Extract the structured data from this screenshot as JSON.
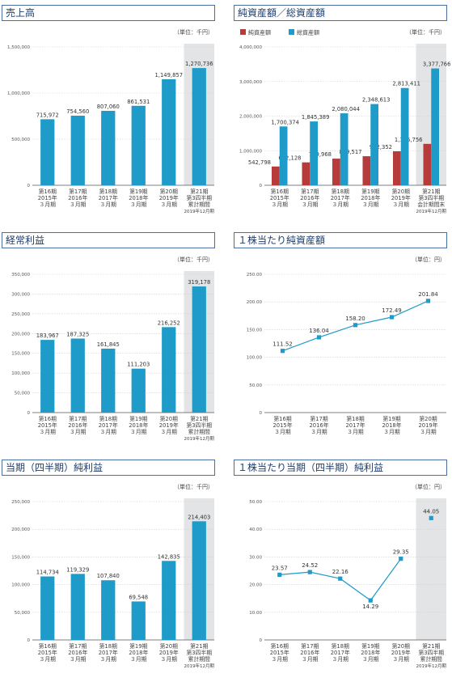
{
  "charts": [
    {
      "title": "売上高",
      "unit": "（単位：千円）",
      "chart_data": {
        "type": "bar",
        "ylim": [
          0,
          1500000
        ],
        "yticks": [
          0,
          500000,
          1000000,
          1500000
        ],
        "ytick_labels": [
          "0",
          "500,000",
          "1,000,000",
          "1,500,000"
        ],
        "grid": true,
        "categories": [
          [
            "第16期",
            "2015年",
            "３月期"
          ],
          [
            "第17期",
            "2016年",
            "３月期"
          ],
          [
            "第18期",
            "2017年",
            "３月期"
          ],
          [
            "第19期",
            "2018年",
            "３月期"
          ],
          [
            "第20期",
            "2019年",
            "３月期"
          ],
          [
            "第21期",
            "第3四半期",
            "累計期間",
            "2019年12月期"
          ]
        ],
        "series": [
          {
            "values": [
              715972,
              754560,
              807060,
              861531,
              1149857,
              1270736
            ],
            "labels": [
              "715,972",
              "754,560",
              "807,060",
              "861,531",
              "1,149,857",
              "1,270,736"
            ]
          }
        ],
        "highlight_last": true
      }
    },
    {
      "title": "純資産額／総資産額",
      "unit": "（単位：千円）",
      "chart_data": {
        "type": "bar",
        "ylim": [
          0,
          4000000
        ],
        "yticks": [
          0,
          1000000,
          2000000,
          3000000,
          4000000
        ],
        "ytick_labels": [
          "0",
          "1,000,000",
          "2,000,000",
          "3,000,000",
          "4,000,000"
        ],
        "grid": true,
        "legend_position": "top-left",
        "categories": [
          [
            "第16期",
            "2015年",
            "３月期"
          ],
          [
            "第17期",
            "2016年",
            "３月期"
          ],
          [
            "第18期",
            "2017年",
            "３月期"
          ],
          [
            "第19期",
            "2018年",
            "３月期"
          ],
          [
            "第20期",
            "2019年",
            "３月期"
          ],
          [
            "第21期",
            "第3四半期",
            "会計期間末",
            "2019年12月期"
          ]
        ],
        "series": [
          {
            "name": "純資産額",
            "values": [
              542798,
              662128,
              769968,
              839517,
              982352,
              1196756
            ],
            "labels": [
              "542,798",
              "662,128",
              "769,968",
              "839,517",
              "982,352",
              "1,196,756"
            ]
          },
          {
            "name": "総資産額",
            "values": [
              1700374,
              1845389,
              2080044,
              2348613,
              2813411,
              3377766
            ],
            "labels": [
              "1,700,374",
              "1,845,389",
              "2,080,044",
              "2,348,613",
              "2,813,411",
              "3,377,766"
            ]
          }
        ],
        "colors": [
          "#b83b3b",
          "#1e9bc8"
        ],
        "highlight_last": true
      }
    },
    {
      "title": "経常利益",
      "unit": "（単位：千円）",
      "chart_data": {
        "type": "bar",
        "ylim": [
          0,
          350000
        ],
        "yticks": [
          0,
          50000,
          100000,
          150000,
          200000,
          250000,
          300000,
          350000
        ],
        "ytick_labels": [
          "0",
          "50,000",
          "100,000",
          "150,000",
          "200,000",
          "250,000",
          "300,000",
          "350,000"
        ],
        "grid": true,
        "categories": [
          [
            "第16期",
            "2015年",
            "３月期"
          ],
          [
            "第17期",
            "2016年",
            "３月期"
          ],
          [
            "第18期",
            "2017年",
            "３月期"
          ],
          [
            "第19期",
            "2018年",
            "３月期"
          ],
          [
            "第20期",
            "2019年",
            "３月期"
          ],
          [
            "第21期",
            "第3四半期",
            "累計期間",
            "2019年12月期"
          ]
        ],
        "series": [
          {
            "values": [
              183967,
              187325,
              161845,
              111203,
              216252,
              319178
            ],
            "labels": [
              "183,967",
              "187,325",
              "161,845",
              "111,203",
              "216,252",
              "319,178"
            ]
          }
        ],
        "highlight_last": true
      }
    },
    {
      "title": "１株当たり純資産額",
      "unit": "（単位：円）",
      "chart_data": {
        "type": "line",
        "ylim": [
          0,
          250
        ],
        "yticks": [
          0,
          50,
          100,
          150,
          200,
          250
        ],
        "ytick_labels": [
          "0",
          "50.00",
          "100.00",
          "150.00",
          "200.00",
          "250.00"
        ],
        "grid": true,
        "categories": [
          [
            "第16期",
            "2015年",
            "３月期"
          ],
          [
            "第17期",
            "2016年",
            "３月期"
          ],
          [
            "第18期",
            "2017年",
            "３月期"
          ],
          [
            "第19期",
            "2018年",
            "３月期"
          ],
          [
            "第20期",
            "2019年",
            "３月期"
          ]
        ],
        "series": [
          {
            "values": [
              111.52,
              136.04,
              158.2,
              172.49,
              201.84
            ],
            "labels": [
              "111.52",
              "136.04",
              "158.20",
              "172.49",
              "201.84"
            ]
          }
        ],
        "highlight_last": false
      }
    },
    {
      "title": "当期（四半期）純利益",
      "unit": "（単位：千円）",
      "chart_data": {
        "type": "bar",
        "ylim": [
          0,
          250000
        ],
        "yticks": [
          0,
          50000,
          100000,
          150000,
          200000,
          250000
        ],
        "ytick_labels": [
          "0",
          "50,000",
          "100,000",
          "150,000",
          "200,000",
          "250,000"
        ],
        "grid": true,
        "categories": [
          [
            "第16期",
            "2015年",
            "３月期"
          ],
          [
            "第17期",
            "2016年",
            "３月期"
          ],
          [
            "第18期",
            "2017年",
            "３月期"
          ],
          [
            "第19期",
            "2018年",
            "３月期"
          ],
          [
            "第20期",
            "2019年",
            "３月期"
          ],
          [
            "第21期",
            "第3四半期",
            "累計期間",
            "2019年12月期"
          ]
        ],
        "series": [
          {
            "values": [
              114734,
              119329,
              107840,
              69548,
              142835,
              214403
            ],
            "labels": [
              "114,734",
              "119,329",
              "107,840",
              "69,548",
              "142,835",
              "214,403"
            ]
          }
        ],
        "highlight_last": true
      }
    },
    {
      "title": "１株当たり当期（四半期）純利益",
      "unit": "（単位：円）",
      "chart_data": {
        "type": "line",
        "ylim": [
          0,
          50
        ],
        "yticks": [
          0,
          10,
          20,
          30,
          40,
          50
        ],
        "ytick_labels": [
          "0",
          "10.00",
          "20.00",
          "30.00",
          "40.00",
          "50.00"
        ],
        "grid": true,
        "categories": [
          [
            "第16期",
            "2015年",
            "３月期"
          ],
          [
            "第17期",
            "2016年",
            "３月期"
          ],
          [
            "第18期",
            "2017年",
            "３月期"
          ],
          [
            "第19期",
            "2018年",
            "３月期"
          ],
          [
            "第20期",
            "2019年",
            "３月期"
          ],
          [
            "第21期",
            "第3四半期",
            "累計期間",
            "2019年12月期"
          ]
        ],
        "series": [
          {
            "values": [
              23.57,
              24.52,
              22.16,
              14.29,
              29.35,
              44.05
            ],
            "labels": [
              "23.57",
              "24.52",
              "22.16",
              "14.29",
              "29.35",
              "44.05"
            ],
            "connect_last": false
          }
        ],
        "highlight_last": true
      }
    }
  ],
  "colors": {
    "bar": "#1e9bc8",
    "line": "#1e9bc8",
    "highlight_bg": "#e3e4e6",
    "grid": "#d0d0d0"
  }
}
